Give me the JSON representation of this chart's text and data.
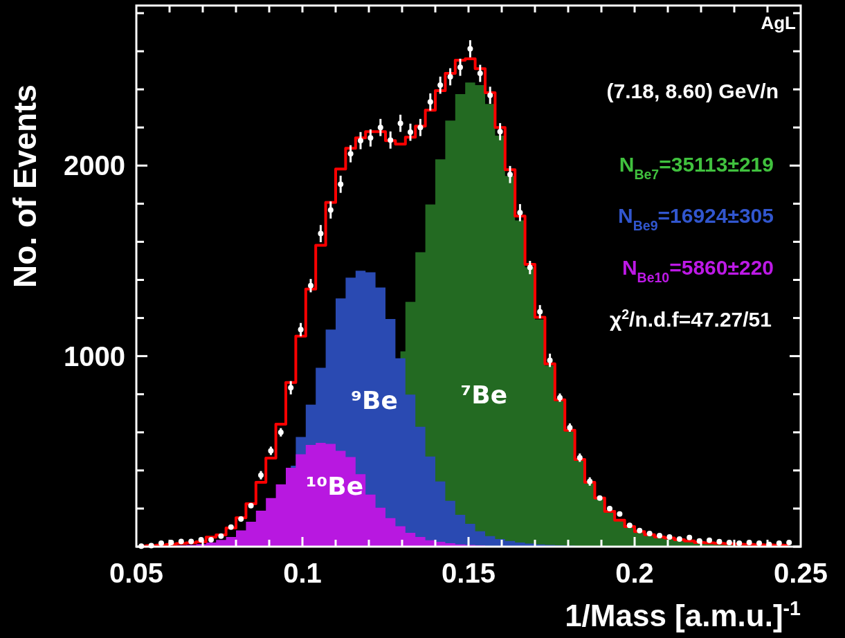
{
  "chart_data": {
    "type": "area",
    "xlabel": "1/Mass [a.m.u.]$^{-1}$",
    "ylabel": "No. of Events",
    "annotations": [
      "AgL",
      "(7.18, 8.60) GeV/n",
      "N$_{Be7}$=35113±219",
      "N$_{Be9}$=16924±305",
      "N$_{Be10}$=5860±220",
      "χ$^{2}$/n.d.f=47.27/51"
    ],
    "x": [
      0.0515,
      0.0545,
      0.0575,
      0.0605,
      0.0635,
      0.0665,
      0.0695,
      0.0725,
      0.0755,
      0.0785,
      0.0815,
      0.0845,
      0.0875,
      0.0905,
      0.0935,
      0.0965,
      0.0995,
      0.1025,
      0.1055,
      0.1085,
      0.1115,
      0.1145,
      0.1175,
      0.1205,
      0.1235,
      0.1265,
      0.1295,
      0.1325,
      0.1355,
      0.1385,
      0.1415,
      0.1445,
      0.1475,
      0.1505,
      0.1535,
      0.1565,
      0.1595,
      0.1625,
      0.1655,
      0.1685,
      0.1715,
      0.1745,
      0.1775,
      0.1805,
      0.1835,
      0.1865,
      0.1895,
      0.1925,
      0.1955,
      0.1985,
      0.2015,
      0.2045,
      0.2075,
      0.2105,
      0.2135,
      0.2165,
      0.2195,
      0.2225,
      0.2255,
      0.2285,
      0.2315,
      0.2345,
      0.2375,
      0.2405,
      0.2435,
      0.2465
    ],
    "series": [
      {
        "name": "⁷Be",
        "color": "#236a22",
        "values": [
          null,
          null,
          null,
          null,
          null,
          null,
          null,
          null,
          null,
          null,
          null,
          null,
          null,
          null,
          null,
          null,
          null,
          null,
          null,
          null,
          null,
          null,
          null,
          null,
          null,
          null,
          1025,
          1285,
          1545,
          1796,
          2033,
          2236,
          2375,
          2436,
          2422,
          2323,
          2157,
          1946,
          1712,
          1466,
          1192,
          951,
          764,
          606,
          454,
          335,
          253,
          184,
          139,
          105,
          79,
          63,
          51,
          45,
          36,
          30,
          22,
          20,
          17,
          15,
          13,
          12,
          null,
          null,
          null,
          null
        ]
      },
      {
        "name": "⁹Be",
        "color": "#2a4ab2",
        "values": [
          null,
          null,
          null,
          null,
          null,
          null,
          null,
          null,
          null,
          null,
          null,
          null,
          null,
          null,
          null,
          425,
          576,
          745,
          939,
          1139,
          1303,
          1412,
          1448,
          1440,
          1360,
          1195,
          989,
          798,
          629,
          473,
          342,
          241,
          167,
          120,
          81,
          55,
          40,
          30,
          22,
          16,
          12,
          9,
          7,
          5,
          4,
          3,
          2,
          2,
          1,
          1,
          1,
          null,
          null,
          null,
          null,
          null,
          null,
          null,
          null,
          null,
          null,
          null,
          null,
          null,
          null,
          null
        ]
      },
      {
        "name": "¹⁰Be",
        "color": "#b818e0",
        "values": [
          1,
          1,
          2,
          4,
          6,
          9,
          14,
          22,
          35,
          51,
          85,
          131,
          189,
          255,
          327,
          414,
          485,
          534,
          545,
          539,
          503,
          470,
          380,
          273,
          204,
          150,
          107,
          73,
          51,
          34,
          25,
          18,
          12,
          9,
          6,
          4,
          3,
          2,
          null,
          null,
          null,
          null,
          null,
          null,
          null,
          null,
          null,
          null,
          null,
          null,
          null,
          null,
          null,
          null,
          null,
          null,
          null,
          null,
          null,
          null,
          null,
          null,
          null,
          null,
          null,
          null
        ]
      },
      {
        "type": "step",
        "color": "#ff0000",
        "values": [
          3,
          5,
          8,
          12,
          16,
          20,
          25,
          50,
          62,
          98,
          152,
          225,
          338,
          465,
          643,
          862,
          1105,
          1352,
          1582,
          1807,
          1982,
          2091,
          2145,
          2178,
          2178,
          2131,
          2113,
          2149,
          2207,
          2291,
          2393,
          2484,
          2553,
          2560,
          2509,
          2382,
          2200,
          1978,
          1735,
          1482,
          1204,
          960,
          771,
          611,
          458,
          338,
          255,
          185,
          139,
          105,
          79,
          63,
          51,
          45,
          36,
          30,
          22,
          20,
          17,
          15,
          13,
          12,
          10,
          9,
          8,
          7
        ]
      },
      {
        "type": "scatter",
        "color": "#ffffff",
        "marker": "circle",
        "values": [
          3,
          5,
          18,
          22,
          27,
          27,
          36,
          36,
          55,
          103,
          145,
          215,
          375,
          503,
          600,
          834,
          1139,
          1370,
          1643,
          1767,
          1902,
          2062,
          2131,
          2145,
          2200,
          2134,
          2222,
          2175,
          2200,
          2334,
          2422,
          2466,
          2516,
          2613,
          2484,
          2369,
          2178,
          1953,
          1753,
          1465,
          1233,
          978,
          782,
          625,
          467,
          342,
          255,
          200,
          172,
          112,
          84,
          69,
          58,
          51,
          40,
          48,
          30,
          34,
          26,
          22,
          18,
          22,
          18,
          12,
          18,
          22
        ],
        "errors": [
          7,
          7,
          7,
          7,
          7,
          7,
          7,
          7,
          7,
          12,
          12,
          12,
          22,
          22,
          22,
          35,
          35,
          35,
          45,
          45,
          45,
          45,
          45,
          45,
          45,
          45,
          45,
          45,
          45,
          45,
          45,
          45,
          45,
          45,
          45,
          45,
          45,
          45,
          45,
          35,
          35,
          35,
          22,
          22,
          22,
          22,
          12,
          12,
          12,
          12,
          7,
          7,
          7,
          7,
          7,
          7,
          7,
          7,
          7,
          7,
          7,
          7,
          7,
          7,
          7,
          7
        ]
      }
    ],
    "xlim": [
      0.05,
      0.25
    ],
    "xticks": [
      0.05,
      {
        "value": 0.06,
        "label": null
      },
      {
        "value": 0.07,
        "label": null
      },
      {
        "value": 0.08,
        "label": null
      },
      {
        "value": 0.09,
        "label": null
      },
      0.1,
      {
        "value": 0.11,
        "label": null
      },
      {
        "value": 0.12,
        "label": null
      },
      {
        "value": 0.13,
        "label": null
      },
      {
        "value": 0.14,
        "label": null
      },
      0.15,
      {
        "value": 0.16,
        "label": null
      },
      {
        "value": 0.17,
        "label": null
      },
      {
        "value": 0.18,
        "label": null
      },
      {
        "value": 0.19,
        "label": null
      },
      0.2,
      {
        "value": 0.21,
        "label": null
      },
      {
        "value": 0.22,
        "label": null
      },
      {
        "value": 0.23,
        "label": null
      },
      {
        "value": 0.24,
        "label": null
      },
      0.25
    ],
    "ylim": [
      0,
      2840
    ],
    "yticks": [
      {
        "value": 0,
        "label": null
      },
      {
        "value": 200,
        "label": null
      },
      {
        "value": 400,
        "label": null
      },
      {
        "value": 600,
        "label": null
      },
      {
        "value": 800,
        "label": null
      },
      1000,
      {
        "value": 1200,
        "label": null
      },
      {
        "value": 1400,
        "label": null
      },
      {
        "value": 1600,
        "label": null
      },
      {
        "value": 1800,
        "label": null
      },
      2000,
      {
        "value": 2200,
        "label": null
      },
      {
        "value": 2400,
        "label": null
      },
      {
        "value": 2600,
        "label": null
      },
      {
        "value": 2800,
        "label": null
      }
    ]
  }
}
